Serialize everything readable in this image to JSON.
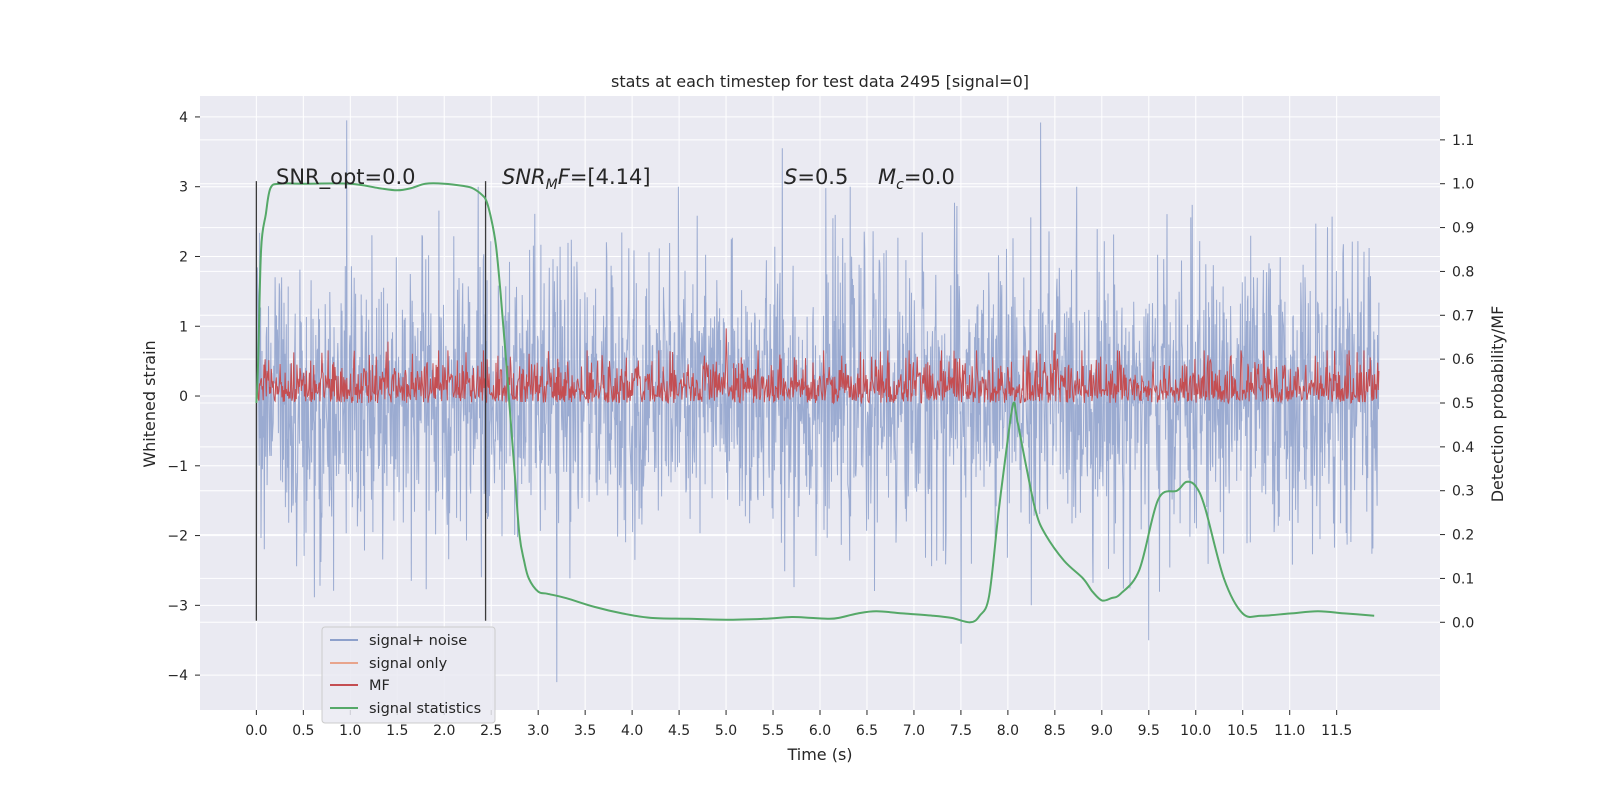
{
  "chart_data": {
    "type": "line",
    "title": "stats at each timestep for test data 2495 [signal=0]",
    "xlabel": "Time (s)",
    "ylabel": "Whitened strain",
    "y2label": "Detection probability/MF",
    "xlim": [
      -0.6,
      12.6
    ],
    "ylim": [
      -4.5,
      4.3
    ],
    "y2lim": [
      -0.2,
      1.2
    ],
    "x_ticks": [
      0.0,
      0.5,
      1.0,
      1.5,
      2.0,
      2.5,
      3.0,
      3.5,
      4.0,
      4.5,
      5.0,
      5.5,
      6.0,
      6.5,
      7.0,
      7.5,
      8.0,
      8.5,
      9.0,
      9.5,
      10.0,
      10.5,
      11.0,
      11.5
    ],
    "x_tick_labels": [
      "0.0",
      "0.5",
      "1.0",
      "1.5",
      "2.0",
      "2.5",
      "3.0",
      "3.5",
      "4.0",
      "4.5",
      "5.0",
      "5.5",
      "6.0",
      "6.5",
      "7.0",
      "7.5",
      "8.0",
      "8.5",
      "9.0",
      "9.5",
      "10.0",
      "10.5",
      "11.0",
      "11.5"
    ],
    "y_ticks": [
      -4,
      -3,
      -2,
      -1,
      0,
      1,
      2,
      3,
      4
    ],
    "y_tick_labels": [
      "−4",
      "−3",
      "−2",
      "−1",
      "0",
      "1",
      "2",
      "3",
      "4"
    ],
    "y2_ticks": [
      0.0,
      0.1,
      0.2,
      0.3,
      0.4,
      0.5,
      0.6,
      0.7,
      0.8,
      0.9,
      1.0,
      1.1
    ],
    "y2_tick_labels": [
      "0.0",
      "0.1",
      "0.2",
      "0.3",
      "0.4",
      "0.5",
      "0.6",
      "0.7",
      "0.8",
      "0.9",
      "1.0",
      "1.1"
    ],
    "grid": true,
    "legend_position": "lower-left",
    "vlines": [
      0.0,
      2.44
    ],
    "series": [
      {
        "name": "signal+ noise",
        "color": "#8da0cb",
        "axis": "left",
        "kind": "noise",
        "x_range": [
          0.0,
          11.95
        ],
        "sigma": 1.0,
        "peaks": [
          [
            0.96,
            3.95
          ],
          [
            8.35,
            3.92
          ],
          [
            3.2,
            -4.1
          ],
          [
            9.5,
            -3.5
          ],
          [
            7.5,
            -3.55
          ],
          [
            0.0,
            3.05
          ],
          [
            0.0,
            -3.2
          ],
          [
            5.6,
            3.55
          ]
        ]
      },
      {
        "name": "signal only",
        "color": "#e8a48c",
        "axis": "left",
        "kind": "flat",
        "values": []
      },
      {
        "name": "MF",
        "color": "#c44e52",
        "axis": "right",
        "kind": "band",
        "x_range": [
          0.0,
          11.95
        ],
        "base": 0.5,
        "low": 0.5,
        "high": 0.62,
        "peaks": [
          [
            5.0,
            0.67
          ],
          [
            1.4,
            0.64
          ],
          [
            8.5,
            0.66
          ]
        ]
      },
      {
        "name": "signal statistics",
        "color": "#55a868",
        "axis": "right",
        "kind": "line",
        "x": [
          0.0,
          0.02,
          0.05,
          0.1,
          0.15,
          0.25,
          0.5,
          1.0,
          1.3,
          1.5,
          1.65,
          1.8,
          2.0,
          2.2,
          2.3,
          2.4,
          2.45,
          2.5,
          2.55,
          2.6,
          2.65,
          2.7,
          2.75,
          2.8,
          2.85,
          2.9,
          3.0,
          3.1,
          3.3,
          3.6,
          3.9,
          4.2,
          4.6,
          5.0,
          5.4,
          5.7,
          5.9,
          6.1,
          6.2,
          6.4,
          6.6,
          6.9,
          7.2,
          7.4,
          7.6,
          7.7,
          7.8,
          7.9,
          8.0,
          8.06,
          8.1,
          8.2,
          8.3,
          8.4,
          8.6,
          8.8,
          8.9,
          9.0,
          9.1,
          9.2,
          9.4,
          9.6,
          9.8,
          9.9,
          10.0,
          10.1,
          10.3,
          10.5,
          10.7,
          11.0,
          11.3,
          11.6,
          11.9
        ],
        "values": [
          0.5,
          0.6,
          0.85,
          0.93,
          0.99,
          1.0,
          1.0,
          1.0,
          0.99,
          0.985,
          0.99,
          1.0,
          1.0,
          0.995,
          0.99,
          0.975,
          0.96,
          0.92,
          0.86,
          0.75,
          0.62,
          0.48,
          0.34,
          0.2,
          0.14,
          0.1,
          0.07,
          0.065,
          0.055,
          0.035,
          0.02,
          0.01,
          0.008,
          0.006,
          0.008,
          0.012,
          0.01,
          0.008,
          0.01,
          0.02,
          0.025,
          0.02,
          0.015,
          0.01,
          0.0,
          0.015,
          0.06,
          0.25,
          0.42,
          0.5,
          0.46,
          0.35,
          0.25,
          0.2,
          0.14,
          0.1,
          0.07,
          0.05,
          0.055,
          0.065,
          0.12,
          0.28,
          0.3,
          0.32,
          0.31,
          0.26,
          0.1,
          0.02,
          0.015,
          0.02,
          0.025,
          0.02,
          0.015
        ]
      }
    ],
    "annotations": [
      {
        "text": "SNR_opt=0.0",
        "x": 0.2,
        "y": 3.05
      },
      {
        "text": "SNR_MF=[4.14]",
        "x": 2.62,
        "y": 3.05
      },
      {
        "text": "S=0.5",
        "x": 5.6,
        "y": 3.05
      },
      {
        "text": "M_c=0.0",
        "x": 6.6,
        "y": 3.05
      }
    ]
  },
  "text": {
    "title": "stats at each timestep for test data 2495 [signal=0]",
    "xlabel": "Time (s)",
    "ylabel": "Whitened strain",
    "y2label": "Detection probability/MF",
    "anno_snr_opt": "SNR_opt=0.0",
    "anno_snr_mf_sub": "M",
    "anno_snr_mf_val": "=[4.14]",
    "anno_s_val": "=0.5",
    "anno_mc_sub": "c",
    "anno_mc_val": "=0.0",
    "legend_1": "signal+ noise",
    "legend_2": "signal only",
    "legend_3": "MF",
    "legend_4": "signal statistics"
  }
}
